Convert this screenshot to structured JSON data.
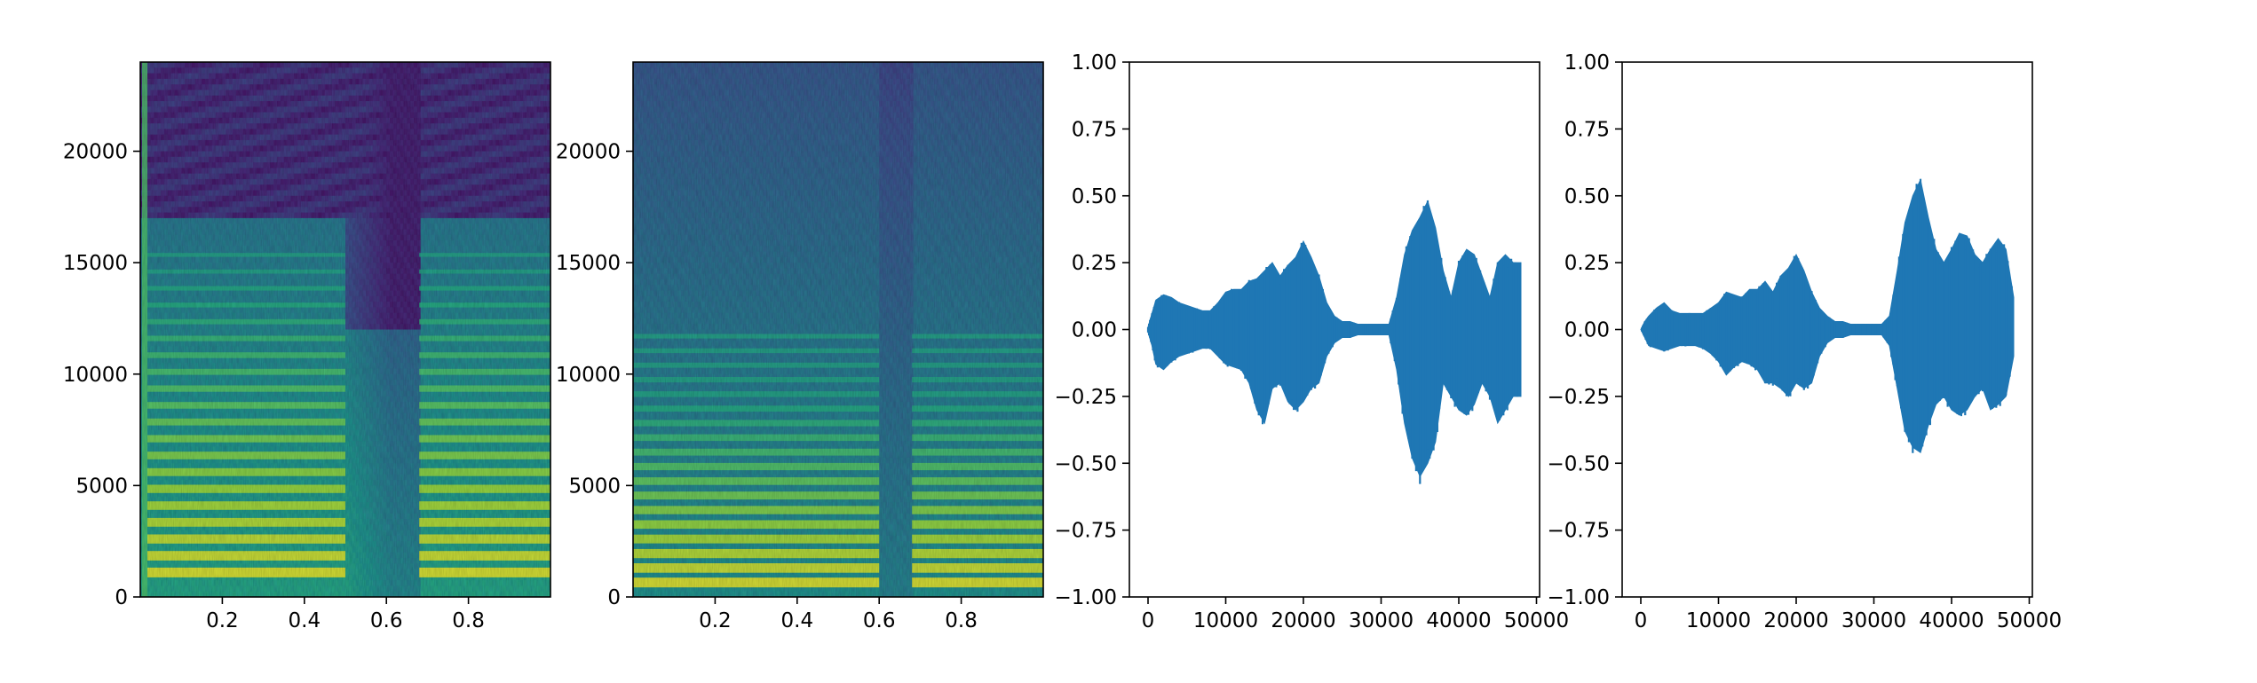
{
  "chart_data": [
    {
      "type": "heatmap",
      "subtype": "spectrogram",
      "colormap": "viridis",
      "xlim": [
        0.0,
        1.0
      ],
      "ylim": [
        0,
        24000
      ],
      "x_ticks": [
        0.2,
        0.4,
        0.6,
        0.8
      ],
      "x_tick_labels": [
        "0.2",
        "0.4",
        "0.6",
        "0.8"
      ],
      "y_ticks": [
        0,
        5000,
        10000,
        15000,
        20000
      ],
      "y_tick_labels": [
        "0",
        "5000",
        "10000",
        "15000",
        "20000"
      ],
      "harmonics_hz": [
        1100,
        1850,
        2600,
        3350,
        4100,
        4850,
        5600,
        6350,
        7100,
        7850,
        8600,
        9350,
        10100,
        10850,
        11600,
        12350,
        13100,
        13850,
        14600,
        15350
      ],
      "cutoff_hz": 17000,
      "gap_time": [
        0.5,
        0.68
      ],
      "grid": false
    },
    {
      "type": "heatmap",
      "subtype": "spectrogram",
      "colormap": "viridis",
      "xlim": [
        0.0,
        1.0
      ],
      "ylim": [
        0,
        24000
      ],
      "x_ticks": [
        0.2,
        0.4,
        0.6,
        0.8
      ],
      "x_tick_labels": [
        "0.2",
        "0.4",
        "0.6",
        "0.8"
      ],
      "y_ticks": [
        0,
        5000,
        10000,
        15000,
        20000
      ],
      "y_tick_labels": [
        "0",
        "5000",
        "10000",
        "15000",
        "20000"
      ],
      "harmonics_hz": [
        650,
        1300,
        1950,
        2600,
        3250,
        3900,
        4550,
        5200,
        5850,
        6500,
        7150,
        7800,
        8450,
        9100,
        9750,
        10400,
        11050,
        11700
      ],
      "gap_time": [
        0.6,
        0.68
      ],
      "grid": false
    },
    {
      "type": "area",
      "subtype": "waveform",
      "color": "#1f77b4",
      "xlim": [
        -2400,
        50400
      ],
      "ylim": [
        -1.0,
        1.0
      ],
      "x_ticks": [
        0,
        10000,
        20000,
        30000,
        40000,
        50000
      ],
      "x_tick_labels": [
        "0",
        "10000",
        "20000",
        "30000",
        "40000",
        "50000"
      ],
      "y_ticks": [
        -1.0,
        -0.75,
        -0.5,
        -0.25,
        0.0,
        0.25,
        0.5,
        0.75,
        1.0
      ],
      "y_tick_labels": [
        "−1.00",
        "−0.75",
        "−0.50",
        "−0.25",
        "0.00",
        "0.25",
        "0.50",
        "0.75",
        "1.00"
      ],
      "x": [
        0,
        500,
        1000,
        2000,
        3000,
        4000,
        5000,
        6000,
        7000,
        8000,
        9000,
        10000,
        11000,
        12000,
        13000,
        14000,
        15000,
        16000,
        17000,
        18000,
        19000,
        20000,
        21000,
        22000,
        23000,
        24000,
        25000,
        26000,
        27000,
        28000,
        29000,
        30000,
        31000,
        32000,
        33000,
        34000,
        35000,
        36000,
        37000,
        38000,
        39000,
        40000,
        41000,
        42000,
        43000,
        44000,
        45000,
        46000,
        47000,
        48000
      ],
      "upper": [
        0.01,
        0.06,
        0.11,
        0.13,
        0.12,
        0.1,
        0.09,
        0.08,
        0.07,
        0.07,
        0.1,
        0.14,
        0.15,
        0.15,
        0.18,
        0.19,
        0.22,
        0.25,
        0.2,
        0.24,
        0.27,
        0.33,
        0.27,
        0.2,
        0.1,
        0.05,
        0.03,
        0.03,
        0.02,
        0.02,
        0.02,
        0.02,
        0.02,
        0.12,
        0.28,
        0.37,
        0.42,
        0.48,
        0.38,
        0.22,
        0.12,
        0.25,
        0.3,
        0.28,
        0.2,
        0.12,
        0.25,
        0.28,
        0.25,
        0.25
      ],
      "lower": [
        -0.01,
        -0.06,
        -0.13,
        -0.15,
        -0.12,
        -0.1,
        -0.09,
        -0.08,
        -0.07,
        -0.07,
        -0.1,
        -0.13,
        -0.14,
        -0.15,
        -0.2,
        -0.3,
        -0.35,
        -0.22,
        -0.2,
        -0.27,
        -0.3,
        -0.27,
        -0.22,
        -0.2,
        -0.1,
        -0.05,
        -0.03,
        -0.03,
        -0.02,
        -0.02,
        -0.02,
        -0.02,
        -0.02,
        -0.15,
        -0.35,
        -0.48,
        -0.55,
        -0.5,
        -0.42,
        -0.2,
        -0.25,
        -0.3,
        -0.32,
        -0.28,
        -0.2,
        -0.25,
        -0.35,
        -0.3,
        -0.25,
        -0.25
      ],
      "grid": false
    },
    {
      "type": "area",
      "subtype": "waveform",
      "color": "#1f77b4",
      "xlim": [
        -2400,
        50400
      ],
      "ylim": [
        -1.0,
        1.0
      ],
      "x_ticks": [
        0,
        10000,
        20000,
        30000,
        40000,
        50000
      ],
      "x_tick_labels": [
        "0",
        "10000",
        "20000",
        "30000",
        "40000",
        "50000"
      ],
      "y_ticks": [
        -1.0,
        -0.75,
        -0.5,
        -0.25,
        0.0,
        0.25,
        0.5,
        0.75,
        1.0
      ],
      "y_tick_labels": [
        "−1.00",
        "−0.75",
        "−0.50",
        "−0.25",
        "0.00",
        "0.25",
        "0.50",
        "0.75",
        "1.00"
      ],
      "x": [
        0,
        500,
        1000,
        2000,
        3000,
        4000,
        5000,
        6000,
        7000,
        8000,
        9000,
        10000,
        11000,
        12000,
        13000,
        14000,
        15000,
        16000,
        17000,
        18000,
        19000,
        20000,
        21000,
        22000,
        23000,
        24000,
        25000,
        26000,
        27000,
        28000,
        29000,
        30000,
        31000,
        32000,
        33000,
        34000,
        35000,
        36000,
        37000,
        38000,
        39000,
        40000,
        41000,
        42000,
        43000,
        44000,
        45000,
        46000,
        47000,
        48000
      ],
      "upper": [
        0.0,
        0.03,
        0.05,
        0.08,
        0.1,
        0.07,
        0.06,
        0.06,
        0.06,
        0.06,
        0.08,
        0.1,
        0.14,
        0.13,
        0.12,
        0.15,
        0.15,
        0.18,
        0.14,
        0.2,
        0.23,
        0.28,
        0.22,
        0.14,
        0.08,
        0.05,
        0.03,
        0.03,
        0.02,
        0.02,
        0.02,
        0.02,
        0.02,
        0.05,
        0.22,
        0.4,
        0.5,
        0.56,
        0.42,
        0.3,
        0.25,
        0.3,
        0.36,
        0.35,
        0.28,
        0.25,
        0.3,
        0.34,
        0.3,
        0.12
      ],
      "lower": [
        0.0,
        -0.03,
        -0.06,
        -0.07,
        -0.08,
        -0.07,
        -0.06,
        -0.06,
        -0.06,
        -0.07,
        -0.09,
        -0.12,
        -0.17,
        -0.14,
        -0.12,
        -0.13,
        -0.15,
        -0.2,
        -0.2,
        -0.22,
        -0.25,
        -0.2,
        -0.22,
        -0.2,
        -0.1,
        -0.05,
        -0.03,
        -0.03,
        -0.02,
        -0.02,
        -0.02,
        -0.02,
        -0.02,
        -0.06,
        -0.22,
        -0.38,
        -0.44,
        -0.46,
        -0.36,
        -0.28,
        -0.25,
        -0.3,
        -0.32,
        -0.3,
        -0.25,
        -0.22,
        -0.3,
        -0.28,
        -0.25,
        -0.1
      ],
      "grid": false
    }
  ]
}
